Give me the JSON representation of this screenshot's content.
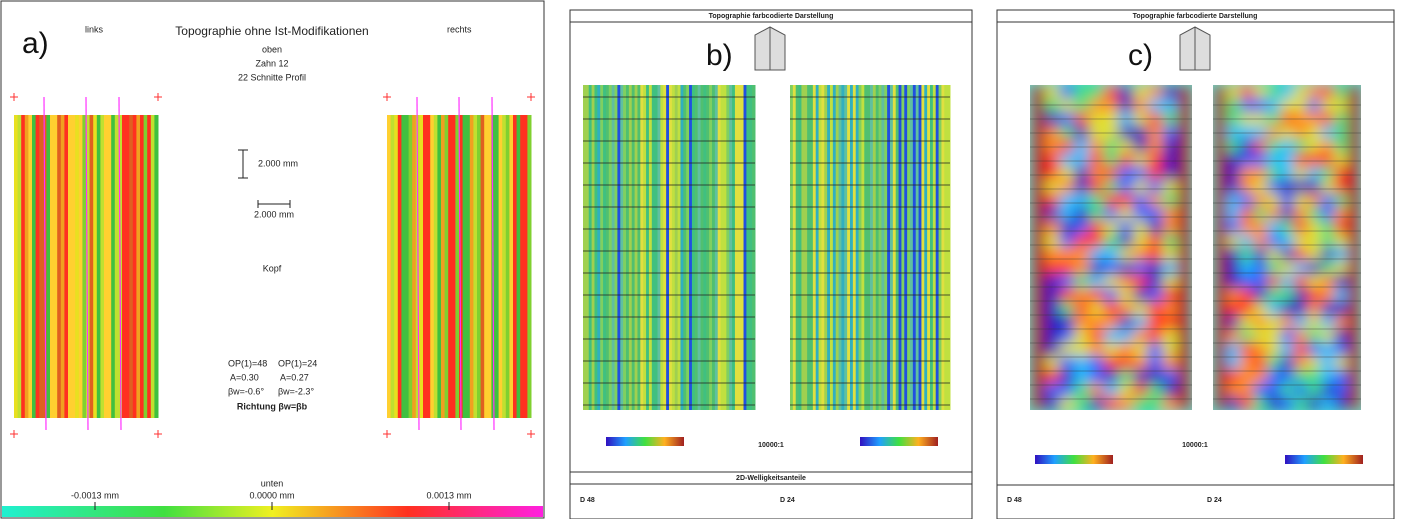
{
  "panel_a": {
    "label": "a)",
    "side_left": "links",
    "side_right": "rechts",
    "title": "Topographie ohne Ist-Modifikationen",
    "top": "oben",
    "tooth": "Zahn 12",
    "sections": "22 Schnitte Profil",
    "scale_v": "2.000 mm",
    "scale_h": "2.000 mm",
    "tip": "Kopf",
    "left_stats": [
      "OP(1)=48",
      "A=0.30",
      "βw=-0.6°"
    ],
    "right_stats": [
      "OP(1)=24",
      "A=0.27",
      "βw=-2.3°"
    ],
    "direction": "Richtung βw=βb",
    "bottom": "unten",
    "colorbar_labels": [
      "-0.0013 mm",
      "0.0000 mm",
      "0.0013 mm"
    ]
  },
  "panel_b": {
    "label": "b)",
    "title": "Topographie farbcodierte Darstellung",
    "scale": "10000:1",
    "table_title": "2D-Welligkeitsanteile",
    "columns": [
      "D 48",
      "D 24"
    ]
  },
  "panel_c": {
    "label": "c)",
    "title": "Topographie farbcodierte Darstellung",
    "scale": "10000:1",
    "columns": [
      "D 48",
      "D 24"
    ]
  }
}
